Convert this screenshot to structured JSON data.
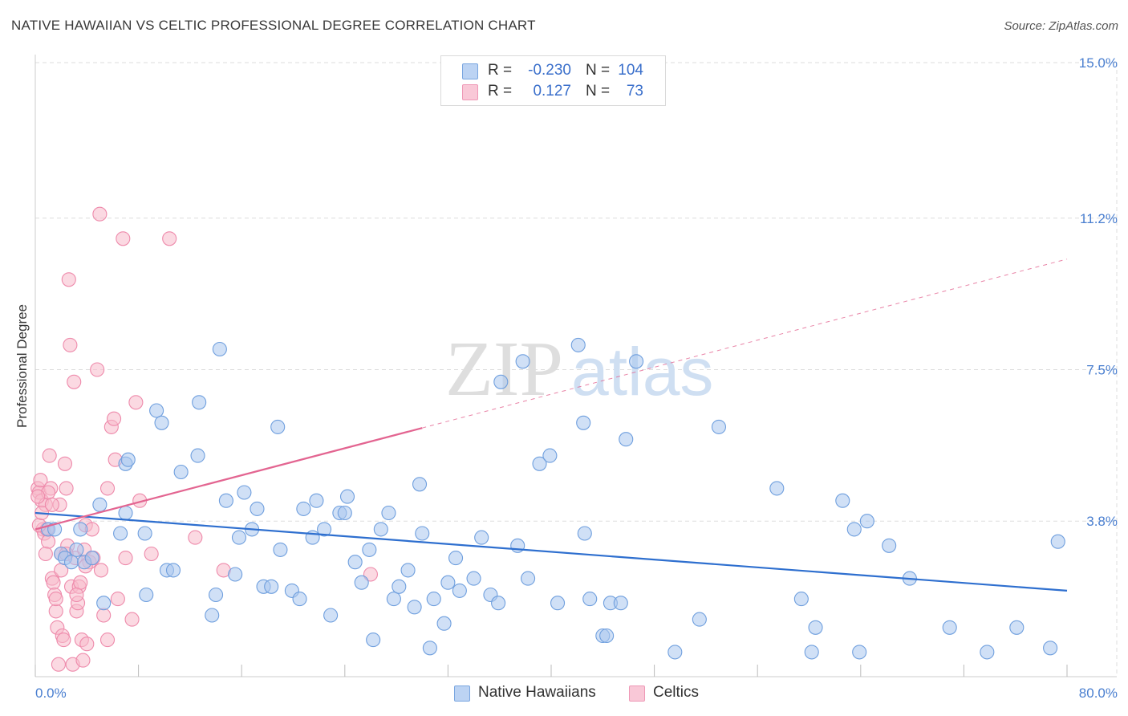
{
  "title": "NATIVE HAWAIIAN VS CELTIC PROFESSIONAL DEGREE CORRELATION CHART",
  "source": "Source: ZipAtlas.com",
  "watermark": {
    "zip": "ZIP",
    "atlas": "atlas"
  },
  "legend": {
    "rows": [
      {
        "r_label": "R =",
        "r_value": "-0.230",
        "n_label": "N =",
        "n_value": "104"
      },
      {
        "r_label": "R =",
        "r_value": "0.127",
        "n_label": "N =",
        "n_value": "73"
      }
    ],
    "items": [
      {
        "label": "Native Hawaiians"
      },
      {
        "label": "Celtics"
      }
    ]
  },
  "colors": {
    "blue_fill": "#a9c6ef",
    "blue_stroke": "#6f9fde",
    "blue_line": "#2e6fcf",
    "pink_fill": "#f7b9cb",
    "pink_stroke": "#ee8aab",
    "pink_line": "#e36591",
    "tick_text": "#4a7fd0",
    "grid": "#dddddd"
  },
  "chart_data": {
    "type": "scatter",
    "title": "NATIVE HAWAIIAN VS CELTIC PROFESSIONAL DEGREE CORRELATION CHART",
    "xlabel": "",
    "ylabel": "Professional Degree",
    "xlim": [
      0,
      80
    ],
    "ylim": [
      0,
      15.0
    ],
    "x_tick_labels": [
      "0.0%",
      "80.0%"
    ],
    "y_ticks": [
      3.8,
      7.5,
      11.2,
      15.0
    ],
    "y_tick_labels": [
      "3.8%",
      "7.5%",
      "11.2%",
      "15.0%"
    ],
    "series": [
      {
        "name": "Native Hawaiians",
        "r": -0.23,
        "n": 104,
        "trend": {
          "x0": 0,
          "y0": 4.0,
          "x1": 80,
          "y1": 2.1,
          "solid_until": 80
        },
        "points": [
          [
            1.0,
            3.6
          ],
          [
            2.0,
            3.0
          ],
          [
            2.3,
            2.9
          ],
          [
            2.8,
            2.8
          ],
          [
            3.2,
            3.1
          ],
          [
            3.5,
            3.6
          ],
          [
            3.8,
            2.8
          ],
          [
            4.4,
            2.9
          ],
          [
            5.3,
            1.8
          ],
          [
            5.0,
            4.2
          ],
          [
            6.6,
            3.5
          ],
          [
            7.0,
            4.0
          ],
          [
            7.0,
            5.2
          ],
          [
            7.2,
            5.3
          ],
          [
            8.6,
            2.0
          ],
          [
            9.4,
            6.5
          ],
          [
            9.8,
            6.2
          ],
          [
            10.2,
            2.6
          ],
          [
            10.7,
            2.6
          ],
          [
            11.3,
            5.0
          ],
          [
            12.6,
            5.4
          ],
          [
            12.7,
            6.7
          ],
          [
            13.7,
            1.5
          ],
          [
            14.0,
            2.0
          ],
          [
            14.3,
            8.0
          ],
          [
            14.8,
            4.3
          ],
          [
            15.5,
            2.5
          ],
          [
            15.8,
            3.4
          ],
          [
            16.2,
            4.5
          ],
          [
            16.8,
            3.6
          ],
          [
            17.2,
            4.1
          ],
          [
            17.7,
            2.2
          ],
          [
            18.3,
            2.2
          ],
          [
            18.8,
            6.1
          ],
          [
            19.0,
            3.1
          ],
          [
            19.9,
            2.1
          ],
          [
            20.5,
            1.9
          ],
          [
            20.8,
            4.1
          ],
          [
            21.5,
            3.4
          ],
          [
            21.8,
            4.3
          ],
          [
            22.4,
            3.6
          ],
          [
            22.9,
            1.5
          ],
          [
            23.6,
            4.0
          ],
          [
            24.0,
            4.0
          ],
          [
            24.2,
            4.4
          ],
          [
            24.8,
            2.8
          ],
          [
            25.3,
            2.3
          ],
          [
            25.9,
            3.1
          ],
          [
            26.2,
            0.9
          ],
          [
            26.8,
            3.6
          ],
          [
            27.4,
            4.0
          ],
          [
            27.8,
            1.9
          ],
          [
            28.2,
            2.2
          ],
          [
            28.9,
            2.6
          ],
          [
            29.4,
            1.7
          ],
          [
            29.8,
            4.7
          ],
          [
            30.6,
            0.7
          ],
          [
            30.9,
            1.9
          ],
          [
            31.7,
            1.3
          ],
          [
            32.0,
            2.3
          ],
          [
            32.6,
            2.9
          ],
          [
            32.9,
            2.1
          ],
          [
            34.0,
            2.4
          ],
          [
            34.6,
            3.4
          ],
          [
            35.3,
            2.0
          ],
          [
            35.9,
            1.8
          ],
          [
            36.1,
            7.2
          ],
          [
            37.4,
            3.2
          ],
          [
            37.8,
            7.7
          ],
          [
            38.2,
            2.4
          ],
          [
            39.1,
            5.2
          ],
          [
            39.9,
            5.4
          ],
          [
            40.5,
            1.8
          ],
          [
            42.1,
            8.1
          ],
          [
            42.5,
            6.2
          ],
          [
            42.6,
            3.5
          ],
          [
            43.0,
            1.9
          ],
          [
            44.0,
            1.0
          ],
          [
            44.3,
            1.0
          ],
          [
            44.6,
            1.8
          ],
          [
            45.4,
            1.8
          ],
          [
            45.8,
            5.8
          ],
          [
            46.6,
            7.7
          ],
          [
            49.6,
            0.6
          ],
          [
            51.5,
            1.4
          ],
          [
            53.0,
            6.1
          ],
          [
            57.5,
            4.6
          ],
          [
            59.4,
            1.9
          ],
          [
            60.2,
            0.6
          ],
          [
            60.5,
            1.2
          ],
          [
            62.6,
            4.3
          ],
          [
            63.5,
            3.6
          ],
          [
            63.9,
            0.6
          ],
          [
            64.5,
            3.8
          ],
          [
            66.2,
            3.2
          ],
          [
            67.8,
            2.4
          ],
          [
            70.9,
            1.2
          ],
          [
            73.8,
            0.6
          ],
          [
            76.1,
            1.2
          ],
          [
            78.7,
            0.7
          ],
          [
            79.3,
            3.3
          ],
          [
            1.5,
            3.6
          ],
          [
            8.5,
            3.5
          ],
          [
            30.0,
            3.5
          ]
        ]
      },
      {
        "name": "Celtics",
        "r": 0.127,
        "n": 73,
        "trend": {
          "x0": 0,
          "y0": 3.6,
          "x1": 80,
          "y1": 10.2,
          "solid_until": 30
        },
        "points": [
          [
            0.2,
            4.6
          ],
          [
            0.3,
            4.5
          ],
          [
            0.4,
            4.8
          ],
          [
            0.5,
            4.3
          ],
          [
            0.6,
            3.6
          ],
          [
            0.7,
            3.5
          ],
          [
            0.8,
            4.2
          ],
          [
            0.9,
            3.6
          ],
          [
            1.0,
            3.3
          ],
          [
            1.1,
            5.4
          ],
          [
            1.2,
            4.6
          ],
          [
            1.3,
            2.4
          ],
          [
            1.4,
            2.3
          ],
          [
            1.5,
            2.0
          ],
          [
            1.6,
            1.6
          ],
          [
            1.7,
            1.2
          ],
          [
            1.8,
            0.3
          ],
          [
            1.9,
            4.2
          ],
          [
            2.0,
            3.0
          ],
          [
            2.1,
            1.0
          ],
          [
            2.2,
            0.9
          ],
          [
            2.3,
            5.2
          ],
          [
            2.4,
            4.6
          ],
          [
            2.5,
            3.2
          ],
          [
            2.6,
            9.7
          ],
          [
            2.7,
            8.1
          ],
          [
            2.8,
            2.2
          ],
          [
            2.9,
            0.3
          ],
          [
            3.0,
            7.2
          ],
          [
            3.1,
            2.9
          ],
          [
            3.2,
            1.6
          ],
          [
            3.3,
            1.8
          ],
          [
            3.4,
            2.2
          ],
          [
            3.5,
            2.3
          ],
          [
            3.6,
            0.9
          ],
          [
            3.7,
            0.4
          ],
          [
            3.8,
            3.1
          ],
          [
            3.9,
            3.7
          ],
          [
            4.0,
            0.8
          ],
          [
            4.2,
            2.8
          ],
          [
            4.5,
            2.9
          ],
          [
            4.8,
            7.5
          ],
          [
            5.0,
            11.3
          ],
          [
            5.1,
            2.6
          ],
          [
            5.3,
            1.5
          ],
          [
            5.6,
            4.6
          ],
          [
            5.9,
            6.1
          ],
          [
            6.1,
            6.3
          ],
          [
            6.2,
            5.3
          ],
          [
            6.4,
            1.9
          ],
          [
            6.8,
            10.7
          ],
          [
            7.0,
            2.9
          ],
          [
            7.5,
            1.4
          ],
          [
            7.8,
            6.7
          ],
          [
            8.1,
            4.3
          ],
          [
            9.0,
            3.0
          ],
          [
            10.4,
            10.7
          ],
          [
            12.4,
            3.4
          ],
          [
            14.6,
            2.6
          ],
          [
            26.0,
            2.5
          ],
          [
            0.3,
            3.7
          ],
          [
            0.5,
            4.0
          ],
          [
            0.8,
            3.0
          ],
          [
            1.0,
            4.5
          ],
          [
            1.3,
            4.2
          ],
          [
            1.6,
            1.9
          ],
          [
            2.0,
            2.6
          ],
          [
            2.4,
            3.0
          ],
          [
            3.2,
            2.0
          ],
          [
            3.9,
            2.7
          ],
          [
            4.4,
            3.6
          ],
          [
            5.6,
            0.9
          ],
          [
            0.2,
            4.4
          ]
        ]
      }
    ]
  }
}
